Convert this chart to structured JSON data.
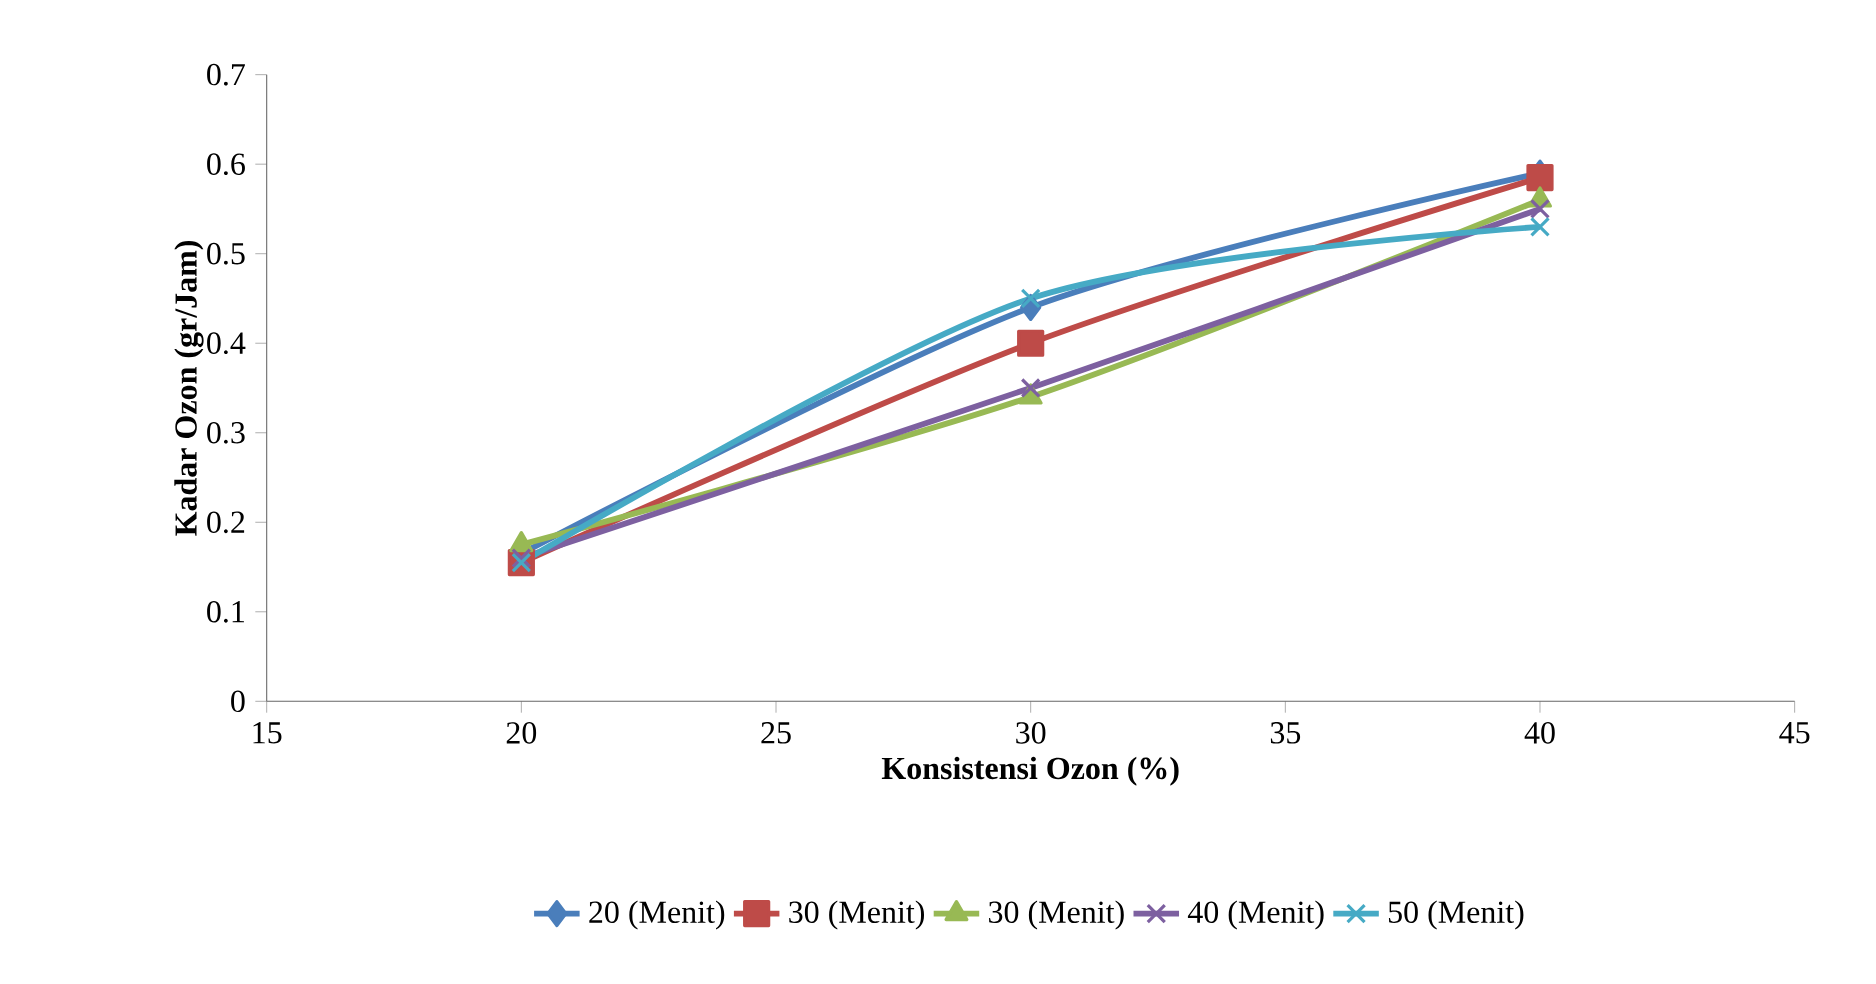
{
  "chart_data": {
    "type": "line",
    "xlabel": "Konsistensi Ozon (%)",
    "ylabel": "Kadar Ozon (gr/Jam)",
    "x": [
      20,
      30,
      40
    ],
    "xlim": [
      15,
      45
    ],
    "xticks": [
      15,
      20,
      25,
      30,
      35,
      40,
      45
    ],
    "ylim": [
      0,
      0.7
    ],
    "yticks": [
      0,
      0.1,
      0.2,
      0.3,
      0.4,
      0.5,
      0.6,
      0.7
    ],
    "legend": "bottom",
    "grid": false,
    "series": [
      {
        "name": "20 (Menit)",
        "color": "#4a7ebb",
        "marker": "diamond",
        "values": [
          0.165,
          0.44,
          0.59
        ]
      },
      {
        "name": "30 (Menit)",
        "color": "#be4b48",
        "marker": "square",
        "values": [
          0.155,
          0.4,
          0.585
        ]
      },
      {
        "name": "30 (Menit)",
        "color": "#98b954",
        "marker": "triangle",
        "values": [
          0.175,
          0.34,
          0.56
        ]
      },
      {
        "name": "40 (Menit)",
        "color": "#7d60a0",
        "marker": "cross",
        "values": [
          0.16,
          0.35,
          0.55
        ]
      },
      {
        "name": "50 (Menit)",
        "color": "#46aac5",
        "marker": "cross",
        "values": [
          0.155,
          0.45,
          0.53
        ]
      }
    ]
  }
}
